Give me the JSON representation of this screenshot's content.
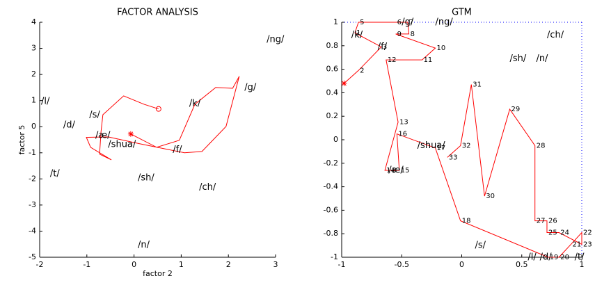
{
  "chart_data": [
    {
      "type": "line",
      "title": "FACTOR ANALYSIS",
      "xlabel": "factor 2",
      "ylabel": "factor 5",
      "xlim": [
        -2,
        3
      ],
      "ylim": [
        -5,
        4
      ],
      "xticks": [
        -2,
        -1,
        0,
        1,
        2,
        3
      ],
      "yticks": [
        -5,
        -4,
        -3,
        -2,
        -1,
        0,
        1,
        2,
        3,
        4
      ],
      "start_marker": "star",
      "end_marker": "circle",
      "series": [
        {
          "color": "#ff0000",
          "x": [
            -0.07,
            0.48,
            0.96,
            1.29,
            1.73,
            2.09,
            2.23,
            1.95,
            1.44,
            1.07,
            0.11,
            -0.55,
            -1.01,
            -0.92,
            -0.48,
            -0.73,
            -0.7,
            -0.66,
            -0.22,
            0.21,
            0.52
          ],
          "values": [
            -0.28,
            -0.79,
            -0.52,
            0.86,
            1.5,
            1.47,
            1.93,
            0.01,
            -0.95,
            -1.0,
            -0.65,
            -0.39,
            -0.41,
            -0.79,
            -1.27,
            -1.05,
            -0.2,
            0.46,
            1.18,
            0.86,
            0.68
          ]
        }
      ],
      "annotations": [
        {
          "text": "/ng/",
          "x": 2.81,
          "y": 3.34
        },
        {
          "text": "/g/",
          "x": 2.34,
          "y": 1.5
        },
        {
          "text": "/k/",
          "x": 1.17,
          "y": 0.89
        },
        {
          "text": "/l/",
          "x": -1.97,
          "y": 0.97
        },
        {
          "text": "/s/",
          "x": -0.95,
          "y": 0.44
        },
        {
          "text": "/d/",
          "x": -1.5,
          "y": 0.06
        },
        {
          "text": "/æ/",
          "x": -0.82,
          "y": -0.34
        },
        {
          "text": "/shua/",
          "x": -0.55,
          "y": -0.68
        },
        {
          "text": "/f/",
          "x": 0.82,
          "y": -0.89
        },
        {
          "text": "/t/",
          "x": -1.78,
          "y": -1.8
        },
        {
          "text": "/sh/",
          "x": 0.08,
          "y": -1.96
        },
        {
          "text": "/ch/",
          "x": 1.38,
          "y": -2.33
        },
        {
          "text": "/n/",
          "x": 0.08,
          "y": -4.54
        }
      ]
    },
    {
      "type": "line",
      "title": "GTM",
      "xlim": [
        -1,
        1
      ],
      "ylim": [
        -1,
        1
      ],
      "xticks": [
        -1,
        -0.5,
        0,
        0.5,
        1
      ],
      "yticks": [
        -1,
        -0.8,
        -0.6,
        -0.4,
        -0.2,
        0,
        0.2,
        0.4,
        0.6,
        0.8,
        1
      ],
      "start_marker": "star",
      "frame": "dotted",
      "frame_color": "#0000ff",
      "series": [
        {
          "color": "#ff0000",
          "x": [
            -0.98,
            -0.86,
            -0.67,
            -0.89,
            -0.86,
            -0.55,
            -0.45,
            -0.44,
            -0.55,
            -0.22,
            -0.33,
            -0.63,
            -0.53,
            -0.64,
            -0.52,
            -0.54,
            -0.22,
            -0.01,
            0.72,
            0.81,
            0.91,
            1.0,
            1.0,
            0.81,
            0.71,
            0.71,
            0.61,
            0.61,
            0.4,
            0.19,
            0.08,
            -0.01,
            -0.12
          ],
          "values": [
            0.48,
            0.59,
            0.79,
            0.91,
            1.0,
            1.0,
            1.0,
            0.9,
            0.9,
            0.78,
            0.68,
            0.68,
            0.15,
            -0.26,
            -0.26,
            0.05,
            -0.07,
            -0.69,
            -1.0,
            -1.0,
            -0.89,
            -0.79,
            -0.89,
            -0.79,
            -0.79,
            -0.69,
            -0.69,
            -0.05,
            0.26,
            -0.48,
            0.47,
            -0.05,
            -0.15
          ],
          "point_labels": [
            null,
            "2",
            "3",
            "1",
            "5",
            "6",
            "7",
            "8",
            "9",
            "10",
            "11",
            "12",
            "13",
            "14",
            "15",
            "16",
            "17",
            "18",
            "19",
            "20",
            "21",
            "22",
            "23",
            "24",
            "25",
            "26",
            "27",
            "28",
            "29",
            "30",
            "31",
            "32",
            "33"
          ]
        }
      ],
      "annotations": [
        {
          "text": "/g/",
          "x": -0.5,
          "y": 1.0
        },
        {
          "text": "/ng/",
          "x": -0.22,
          "y": 1.0
        },
        {
          "text": "/k/",
          "x": -0.92,
          "y": 0.89
        },
        {
          "text": "/f/",
          "x": -0.7,
          "y": 0.79
        },
        {
          "text": "/ch/",
          "x": 0.71,
          "y": 0.89
        },
        {
          "text": "/sh/",
          "x": 0.4,
          "y": 0.69
        },
        {
          "text": "/n/",
          "x": 0.62,
          "y": 0.69
        },
        {
          "text": "/shua/",
          "x": -0.37,
          "y": -0.05
        },
        {
          "text": "/æ/",
          "x": -0.61,
          "y": -0.26
        },
        {
          "text": "/s/",
          "x": 0.11,
          "y": -0.9
        },
        {
          "text": "/l/",
          "x": 0.55,
          "y": -1.0
        },
        {
          "text": "/d/",
          "x": 0.65,
          "y": -1.0
        },
        {
          "text": "/t/",
          "x": 0.94,
          "y": -1.0
        }
      ]
    }
  ]
}
